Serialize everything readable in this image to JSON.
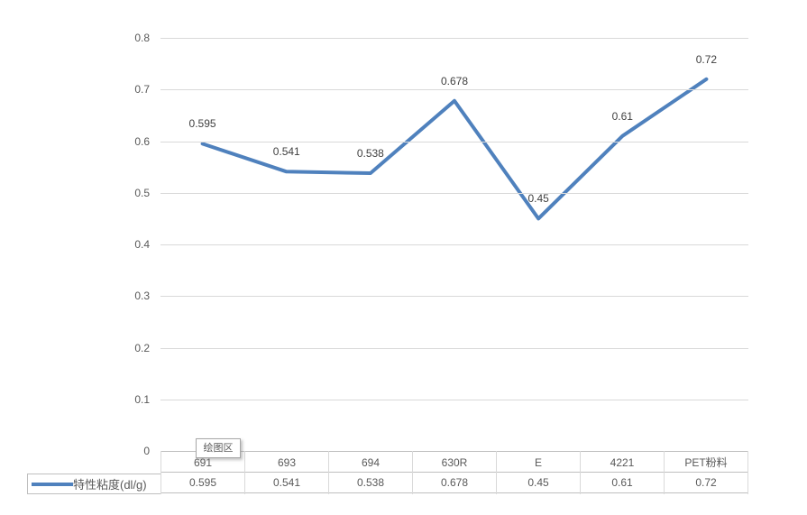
{
  "chart_data": {
    "type": "line",
    "title": "",
    "categories": [
      "691",
      "693",
      "694",
      "630R",
      "E",
      "4221",
      "PET粉料"
    ],
    "series": [
      {
        "name": "特性粘度(dl/g)",
        "values": [
          0.595,
          0.541,
          0.538,
          0.678,
          0.45,
          0.61,
          0.72
        ],
        "labels": [
          "0.595",
          "0.541",
          "0.538",
          "0.678",
          "0.45",
          "0.61",
          "0.72"
        ],
        "color": "#4F81BD"
      }
    ],
    "xlabel": "",
    "ylabel": "",
    "ylim": [
      0,
      0.8
    ],
    "y_ticks": [
      "0.8",
      "0.7",
      "0.6",
      "0.5",
      "0.4",
      "0.3",
      "0.2",
      "0.1",
      "0"
    ],
    "grid": true,
    "legend_position": "bottom-left-of-data-table",
    "data_table_shown": true
  },
  "legend": {
    "label": "特性粘度(dl/g)"
  },
  "tooltip": {
    "text": "绘图区"
  },
  "colors": {
    "series_line": "#4F81BD",
    "gridline": "#D9D9D9",
    "axis_text": "#595959",
    "data_label_text": "#404040",
    "table_border_h": "#BFBFBF",
    "table_border_v": "#D9D9D9",
    "background": "#FFFFFF"
  }
}
